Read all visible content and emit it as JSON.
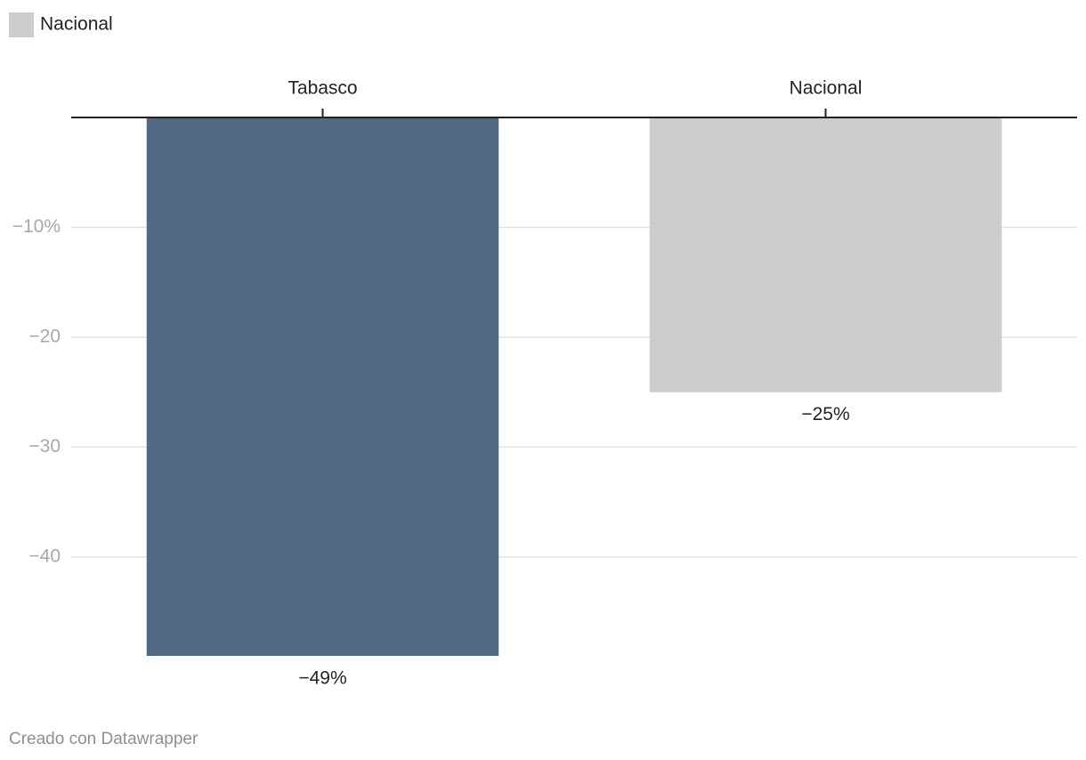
{
  "chart_data": {
    "type": "bar",
    "legend": [
      {
        "name": "Nacional",
        "color": "#cccccc"
      }
    ],
    "categories": [
      "Tabasco",
      "Nacional"
    ],
    "values": [
      -49,
      -25
    ],
    "value_labels": [
      "−49%",
      "−25%"
    ],
    "colors": [
      "#506a83",
      "#cccccc"
    ],
    "ylim": [
      -49,
      0
    ],
    "yticks": [
      {
        "value": -10,
        "label": "−10%"
      },
      {
        "value": -20,
        "label": "−20"
      },
      {
        "value": -30,
        "label": "−30"
      },
      {
        "value": -40,
        "label": "−40"
      }
    ],
    "grid": true
  },
  "footer": "Creado con Datawrapper"
}
